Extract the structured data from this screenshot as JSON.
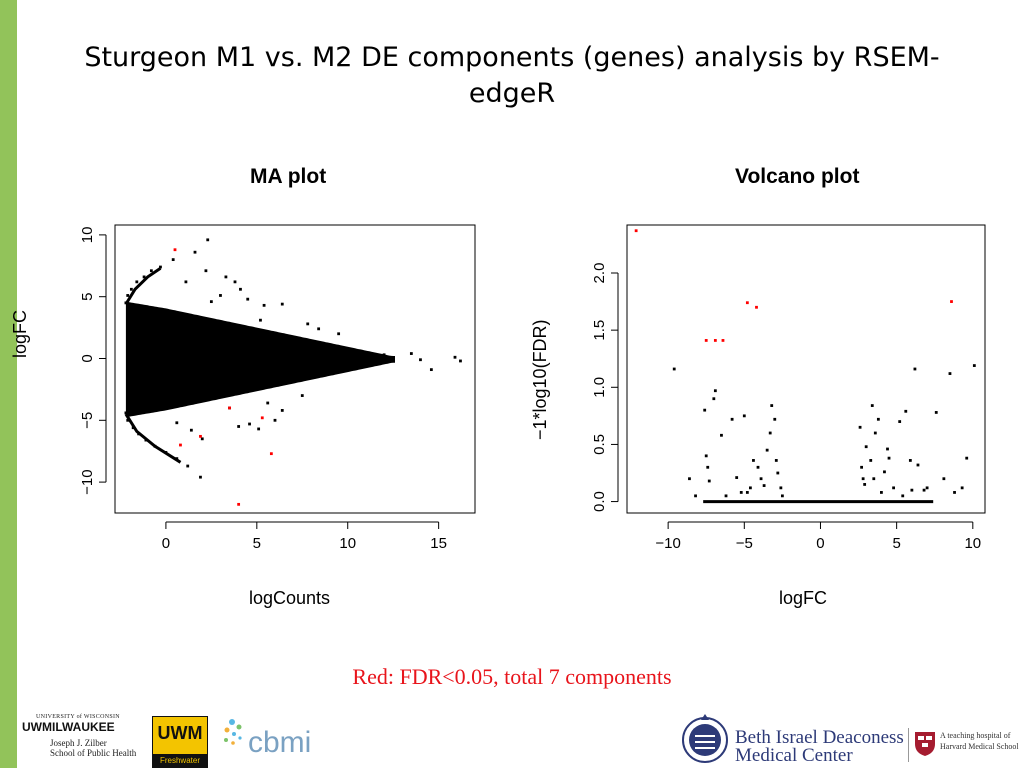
{
  "slide": {
    "title": "Sturgeon M1 vs. M2 DE components (genes) analysis by RSEM-edgeR",
    "caption": "Red: FDR<0.05, total 7 components"
  },
  "chart_data": [
    {
      "type": "scatter",
      "title": "MA plot",
      "xlabel": "logCounts",
      "ylabel": "logFC",
      "xlim": [
        -2.8,
        17
      ],
      "ylim": [
        -12.5,
        10.8
      ],
      "xticks": [
        0,
        5,
        10,
        15
      ],
      "yticks": [
        -10,
        -5,
        0,
        5,
        10
      ],
      "series": [
        {
          "color": "#000000",
          "points": [
            [
              -2.2,
              4.5
            ],
            [
              -2.1,
              5.1
            ],
            [
              -1.9,
              5.6
            ],
            [
              -1.6,
              6.2
            ],
            [
              -1.2,
              6.6
            ],
            [
              -0.8,
              7.1
            ],
            [
              -0.3,
              7.4
            ],
            [
              -2.2,
              -4.4
            ],
            [
              -2.1,
              -5.0
            ],
            [
              -1.8,
              -5.6
            ],
            [
              -1.5,
              -6.1
            ],
            [
              -1.1,
              -6.6
            ],
            [
              -0.6,
              -7.1
            ],
            [
              0.0,
              -7.6
            ],
            [
              0.6,
              -8.1
            ],
            [
              1.2,
              -8.7
            ],
            [
              1.9,
              -9.6
            ],
            [
              0.4,
              8.0
            ],
            [
              1.6,
              8.6
            ],
            [
              2.3,
              9.6
            ],
            [
              3.8,
              6.2
            ],
            [
              4.1,
              5.6
            ],
            [
              5.4,
              4.3
            ],
            [
              6.4,
              4.4
            ],
            [
              2.5,
              4.6
            ],
            [
              3.0,
              5.1
            ],
            [
              4.5,
              4.8
            ],
            [
              5.2,
              3.1
            ],
            [
              4.0,
              -5.5
            ],
            [
              4.6,
              -5.3
            ],
            [
              5.1,
              -5.7
            ],
            [
              3.5,
              -4.0
            ],
            [
              6.4,
              -4.2
            ],
            [
              6.0,
              -5.0
            ],
            [
              5.6,
              -3.6
            ],
            [
              7.5,
              -3.0
            ],
            [
              7.8,
              2.8
            ],
            [
              8.4,
              2.4
            ],
            [
              9.5,
              2.0
            ],
            [
              12.0,
              0.3
            ],
            [
              12.5,
              -0.2
            ],
            [
              13.5,
              0.4
            ],
            [
              14.0,
              -0.1
            ],
            [
              14.6,
              -0.9
            ],
            [
              15.9,
              0.1
            ],
            [
              16.2,
              -0.2
            ],
            [
              0.6,
              -5.2
            ],
            [
              1.4,
              -5.8
            ],
            [
              2.0,
              -6.5
            ],
            [
              1.1,
              6.2
            ],
            [
              2.2,
              7.1
            ],
            [
              3.3,
              6.6
            ]
          ]
        },
        {
          "color": "#ff0000",
          "points": [
            [
              0.5,
              8.8
            ],
            [
              0.8,
              -7.0
            ],
            [
              1.9,
              -6.3
            ],
            [
              3.5,
              -4.0
            ],
            [
              5.3,
              -4.8
            ],
            [
              5.8,
              -7.7
            ],
            [
              4.0,
              -11.8
            ]
          ]
        }
      ]
    },
    {
      "type": "scatter",
      "title": "Volcano plot",
      "xlabel": "logFC",
      "ylabel": "−1*log10(FDR)",
      "xlim": [
        -12.7,
        10.8
      ],
      "ylim": [
        -0.1,
        2.42
      ],
      "xticks": [
        -10,
        -5,
        0,
        5,
        10
      ],
      "yticks": [
        0.0,
        0.5,
        1.0,
        1.5,
        2.0
      ],
      "series": [
        {
          "color": "#000000",
          "points": [
            [
              -9.6,
              1.16
            ],
            [
              -8.6,
              0.2
            ],
            [
              -8.2,
              0.05
            ],
            [
              -7.5,
              0.4
            ],
            [
              -7.4,
              0.3
            ],
            [
              -7.3,
              0.18
            ],
            [
              -7.0,
              0.9
            ],
            [
              -6.9,
              0.97
            ],
            [
              -7.6,
              0.8
            ],
            [
              -6.5,
              0.58
            ],
            [
              -5.8,
              0.72
            ],
            [
              -5.5,
              0.21
            ],
            [
              -5.0,
              0.75
            ],
            [
              -4.8,
              0.08
            ],
            [
              -4.4,
              0.36
            ],
            [
              -4.1,
              0.3
            ],
            [
              -3.9,
              0.2
            ],
            [
              -3.7,
              0.14
            ],
            [
              -3.5,
              0.45
            ],
            [
              -3.3,
              0.6
            ],
            [
              -3.2,
              0.84
            ],
            [
              -3.0,
              0.72
            ],
            [
              -2.9,
              0.36
            ],
            [
              -2.8,
              0.25
            ],
            [
              -2.6,
              0.12
            ],
            [
              -2.5,
              0.05
            ],
            [
              -6.2,
              0.05
            ],
            [
              -5.2,
              0.08
            ],
            [
              -4.6,
              0.12
            ],
            [
              2.6,
              0.65
            ],
            [
              2.7,
              0.3
            ],
            [
              2.9,
              0.15
            ],
            [
              3.0,
              0.48
            ],
            [
              3.3,
              0.36
            ],
            [
              3.4,
              0.84
            ],
            [
              3.5,
              0.2
            ],
            [
              3.6,
              0.6
            ],
            [
              3.8,
              0.72
            ],
            [
              4.0,
              0.08
            ],
            [
              4.2,
              0.26
            ],
            [
              4.5,
              0.38
            ],
            [
              4.8,
              0.12
            ],
            [
              5.2,
              0.7
            ],
            [
              5.4,
              0.05
            ],
            [
              5.6,
              0.79
            ],
            [
              5.9,
              0.36
            ],
            [
              6.2,
              1.16
            ],
            [
              6.4,
              0.32
            ],
            [
              6.8,
              0.1
            ],
            [
              7.0,
              0.12
            ],
            [
              7.6,
              0.78
            ],
            [
              8.1,
              0.2
            ],
            [
              8.5,
              1.12
            ],
            [
              8.8,
              0.08
            ],
            [
              9.3,
              0.12
            ],
            [
              9.6,
              0.38
            ],
            [
              10.1,
              1.19
            ],
            [
              2.8,
              0.2
            ],
            [
              4.4,
              0.46
            ],
            [
              6.0,
              0.1
            ]
          ]
        },
        {
          "color": "#ff0000",
          "points": [
            [
              -12.1,
              2.37
            ],
            [
              -7.5,
              1.41
            ],
            [
              -6.9,
              1.41
            ],
            [
              -6.4,
              1.41
            ],
            [
              -4.8,
              1.74
            ],
            [
              -4.2,
              1.7
            ],
            [
              8.6,
              1.75
            ]
          ]
        }
      ],
      "baseline": {
        "x_from": -7.7,
        "x_to": 7.4,
        "y": 0.0
      }
    }
  ],
  "logos": {
    "uwm_small": "UNIVERSITY of WISCONSIN",
    "uwm_name": "UWMILWAUKEE",
    "zilber": "Joseph J. Zilber",
    "zilber_school": "School of Public Health",
    "uwm_badge": "UWM",
    "uwm_badge_sub": "Freshwater",
    "cbmi": "cbmi",
    "bidmc_line1": "Beth Israel Deaconess",
    "bidmc_line2": "Medical Center",
    "harvard_line1": "A teaching hospital of",
    "harvard_line2": "Harvard Medical School"
  },
  "colors": {
    "sidebar": "#92c35a",
    "caption": "#e8141b",
    "bidmc_text": "#2d3a78",
    "harvard_crimson": "#a51c30"
  }
}
